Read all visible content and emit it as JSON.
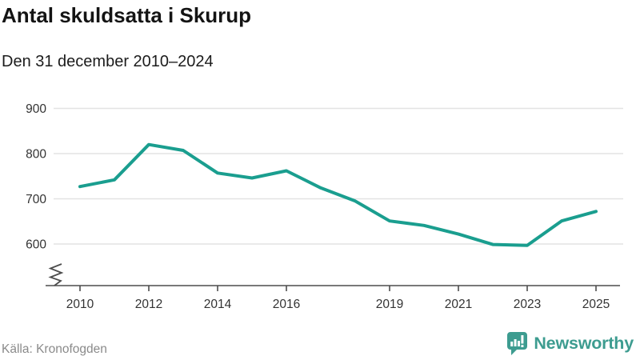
{
  "header": {
    "title": "Antal skuldsatta i Skurup",
    "subtitle": "Den 31 december 2010–2024"
  },
  "chart_data": {
    "type": "line",
    "title": "Antal skuldsatta i Skurup",
    "subtitle": "Den 31 december 2010–2024",
    "x": [
      2010,
      2011,
      2012,
      2013,
      2014,
      2015,
      2016,
      2017,
      2018,
      2019,
      2020,
      2021,
      2022,
      2023,
      2024,
      2025
    ],
    "values": [
      727,
      742,
      820,
      807,
      757,
      746,
      762,
      724,
      695,
      651,
      641,
      622,
      599,
      597,
      651,
      672
    ],
    "series_name": "Antal skuldsatta",
    "x_tick_labels": [
      "2010",
      "2012",
      "2014",
      "2016",
      "2019",
      "2021",
      "2023",
      "2025"
    ],
    "x_tick_years": [
      2010,
      2012,
      2014,
      2016,
      2019,
      2021,
      2023,
      2025
    ],
    "y_ticks": [
      600,
      700,
      800,
      900
    ],
    "y_tick_labels": [
      "600",
      "700",
      "800",
      "900"
    ],
    "ylim": [
      600,
      900
    ],
    "y_axis_break": true,
    "grid": "horizontal",
    "legend": "none",
    "line_color": "#1a9e8f",
    "gridline_color": "#e3e3e3",
    "axis_color": "#4d4d4d",
    "tick_label_color": "#333333"
  },
  "footer": {
    "source": "Källa: Kronofogden",
    "brand": "Newsworthy",
    "brand_color": "#3d9c90"
  },
  "icons": {
    "logo": "newsworthy-speech-bubble-bar-chart-icon"
  }
}
